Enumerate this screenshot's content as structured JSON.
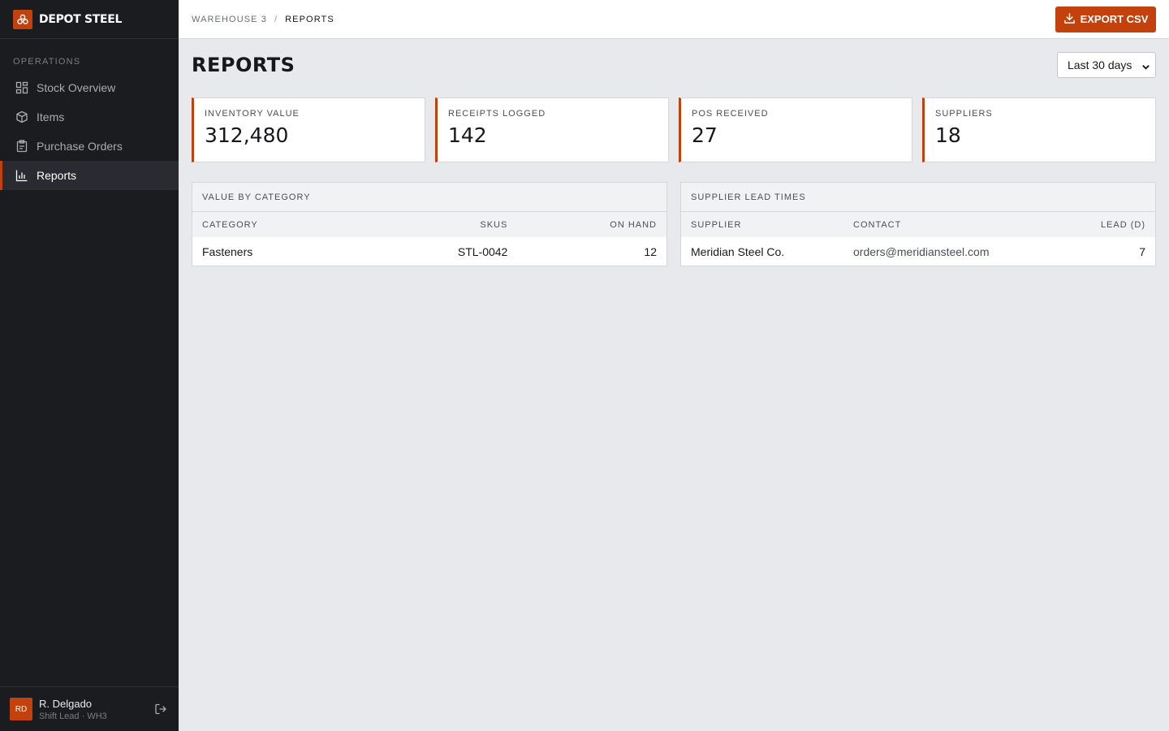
{
  "brand": {
    "name": "DEPOT STEEL"
  },
  "sidebar": {
    "section_label": "OPERATIONS",
    "items": [
      {
        "label": "Stock Overview",
        "icon": "grid-icon",
        "active": false
      },
      {
        "label": "Items",
        "icon": "box-icon",
        "active": false
      },
      {
        "label": "Purchase Orders",
        "icon": "clipboard-icon",
        "active": false
      },
      {
        "label": "Reports",
        "icon": "bar-chart-icon",
        "active": true
      }
    ]
  },
  "user": {
    "initials": "RD",
    "name": "R. Delgado",
    "role": "Shift Lead · WH3"
  },
  "breadcrumb": {
    "parent": "WAREHOUSE 3",
    "separator": "/",
    "current": "REPORTS"
  },
  "toolbar": {
    "export_label": "EXPORT CSV"
  },
  "page": {
    "title": "REPORTS",
    "range_value": "Last 30 days"
  },
  "kpis": [
    {
      "label": "INVENTORY VALUE",
      "value": "312,480"
    },
    {
      "label": "RECEIPTS LOGGED",
      "value": "142"
    },
    {
      "label": "POS RECEIVED",
      "value": "27"
    },
    {
      "label": "SUPPLIERS",
      "value": "18"
    }
  ],
  "category_panel": {
    "title": "VALUE BY CATEGORY",
    "columns": [
      "CATEGORY",
      "SKUS",
      "ON HAND"
    ],
    "rows": [
      {
        "category": "Fasteners",
        "skus": "STL-0042",
        "on_hand": "12"
      }
    ]
  },
  "supplier_panel": {
    "title": "SUPPLIER LEAD TIMES",
    "columns": [
      "SUPPLIER",
      "CONTACT",
      "LEAD (D)"
    ],
    "rows": [
      {
        "supplier": "Meridian Steel Co.",
        "contact": "orders@meridiansteel.com",
        "lead": "7"
      }
    ]
  },
  "colors": {
    "accent": "#c2410c",
    "sidebar_bg": "#1b1c20",
    "page_bg": "#e8e9ed"
  }
}
